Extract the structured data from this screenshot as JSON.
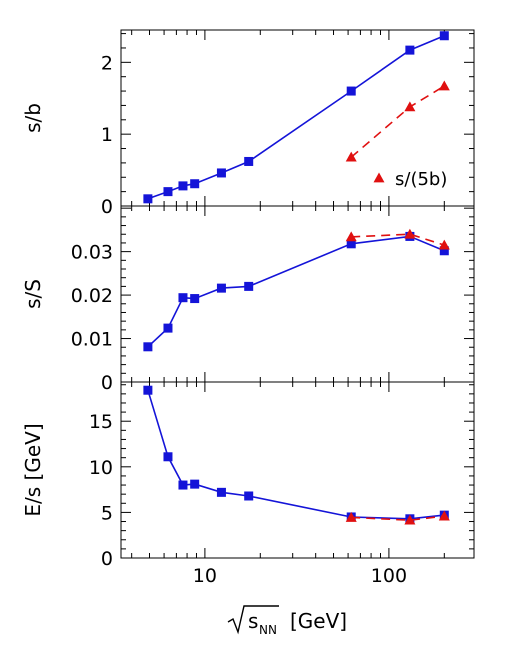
{
  "chart_data": {
    "type": "line",
    "x_scale": "log",
    "xlim": [
      3.5,
      290
    ],
    "xlabel_main": "s",
    "xlabel_subscript": "NN",
    "xlabel_unit": "[GeV]",
    "x_tick_labels": [
      {
        "value": 10,
        "label": "10"
      },
      {
        "value": 100,
        "label": "100"
      }
    ],
    "colors": {
      "blue": "#1414d8",
      "red": "#e01010"
    },
    "panels": [
      {
        "ylabel": "s/b",
        "ylim": [
          0,
          2.45
        ],
        "y_ticks": [
          0,
          1,
          2
        ],
        "y_tick_labels": [
          "0",
          "1",
          "2"
        ],
        "series": [
          {
            "marker": "square",
            "color": "#1414d8",
            "style": "solid",
            "x": [
              4.9,
              6.3,
              7.6,
              8.8,
              12.3,
              17.3,
              62.4,
              130,
              200
            ],
            "y": [
              0.1,
              0.2,
              0.28,
              0.31,
              0.46,
              0.62,
              1.6,
              2.17,
              2.37
            ]
          },
          {
            "name": "s/(5b)",
            "marker": "triangle",
            "color": "#e01010",
            "style": "dashed",
            "x": [
              62.4,
              130,
              200
            ],
            "y": [
              0.68,
              1.38,
              1.67
            ]
          }
        ],
        "legend": "s/(5b)"
      },
      {
        "ylabel": "s/S",
        "ylim": [
          0,
          0.0405
        ],
        "y_ticks": [
          0,
          0.01,
          0.02,
          0.03
        ],
        "y_tick_labels": [
          "0",
          "0.01",
          "0.02",
          "0.03"
        ],
        "series": [
          {
            "marker": "square",
            "color": "#1414d8",
            "style": "solid",
            "x": [
              4.9,
              6.3,
              7.6,
              8.8,
              12.3,
              17.3,
              62.4,
              130,
              200
            ],
            "y": [
              0.0081,
              0.0124,
              0.0194,
              0.0192,
              0.0216,
              0.022,
              0.0318,
              0.0335,
              0.0302
            ]
          },
          {
            "marker": "triangle",
            "color": "#e01010",
            "style": "dashed",
            "x": [
              62.4,
              130,
              200
            ],
            "y": [
              0.0334,
              0.034,
              0.0315
            ]
          }
        ]
      },
      {
        "ylabel": "E/s [GeV]",
        "ylim": [
          0,
          19.3
        ],
        "y_ticks": [
          0,
          5,
          10,
          15
        ],
        "y_tick_labels": [
          "0",
          "5",
          "10",
          "15"
        ],
        "series": [
          {
            "marker": "square",
            "color": "#1414d8",
            "style": "solid",
            "x": [
              4.9,
              6.3,
              7.6,
              8.8,
              12.3,
              17.3,
              62.4,
              130,
              200
            ],
            "y": [
              18.4,
              11.1,
              8.0,
              8.1,
              7.2,
              6.8,
              4.5,
              4.3,
              4.7
            ]
          },
          {
            "marker": "triangle",
            "color": "#e01010",
            "style": "dashed",
            "x": [
              62.4,
              130,
              200
            ],
            "y": [
              4.45,
              4.15,
              4.6
            ]
          }
        ]
      }
    ]
  }
}
